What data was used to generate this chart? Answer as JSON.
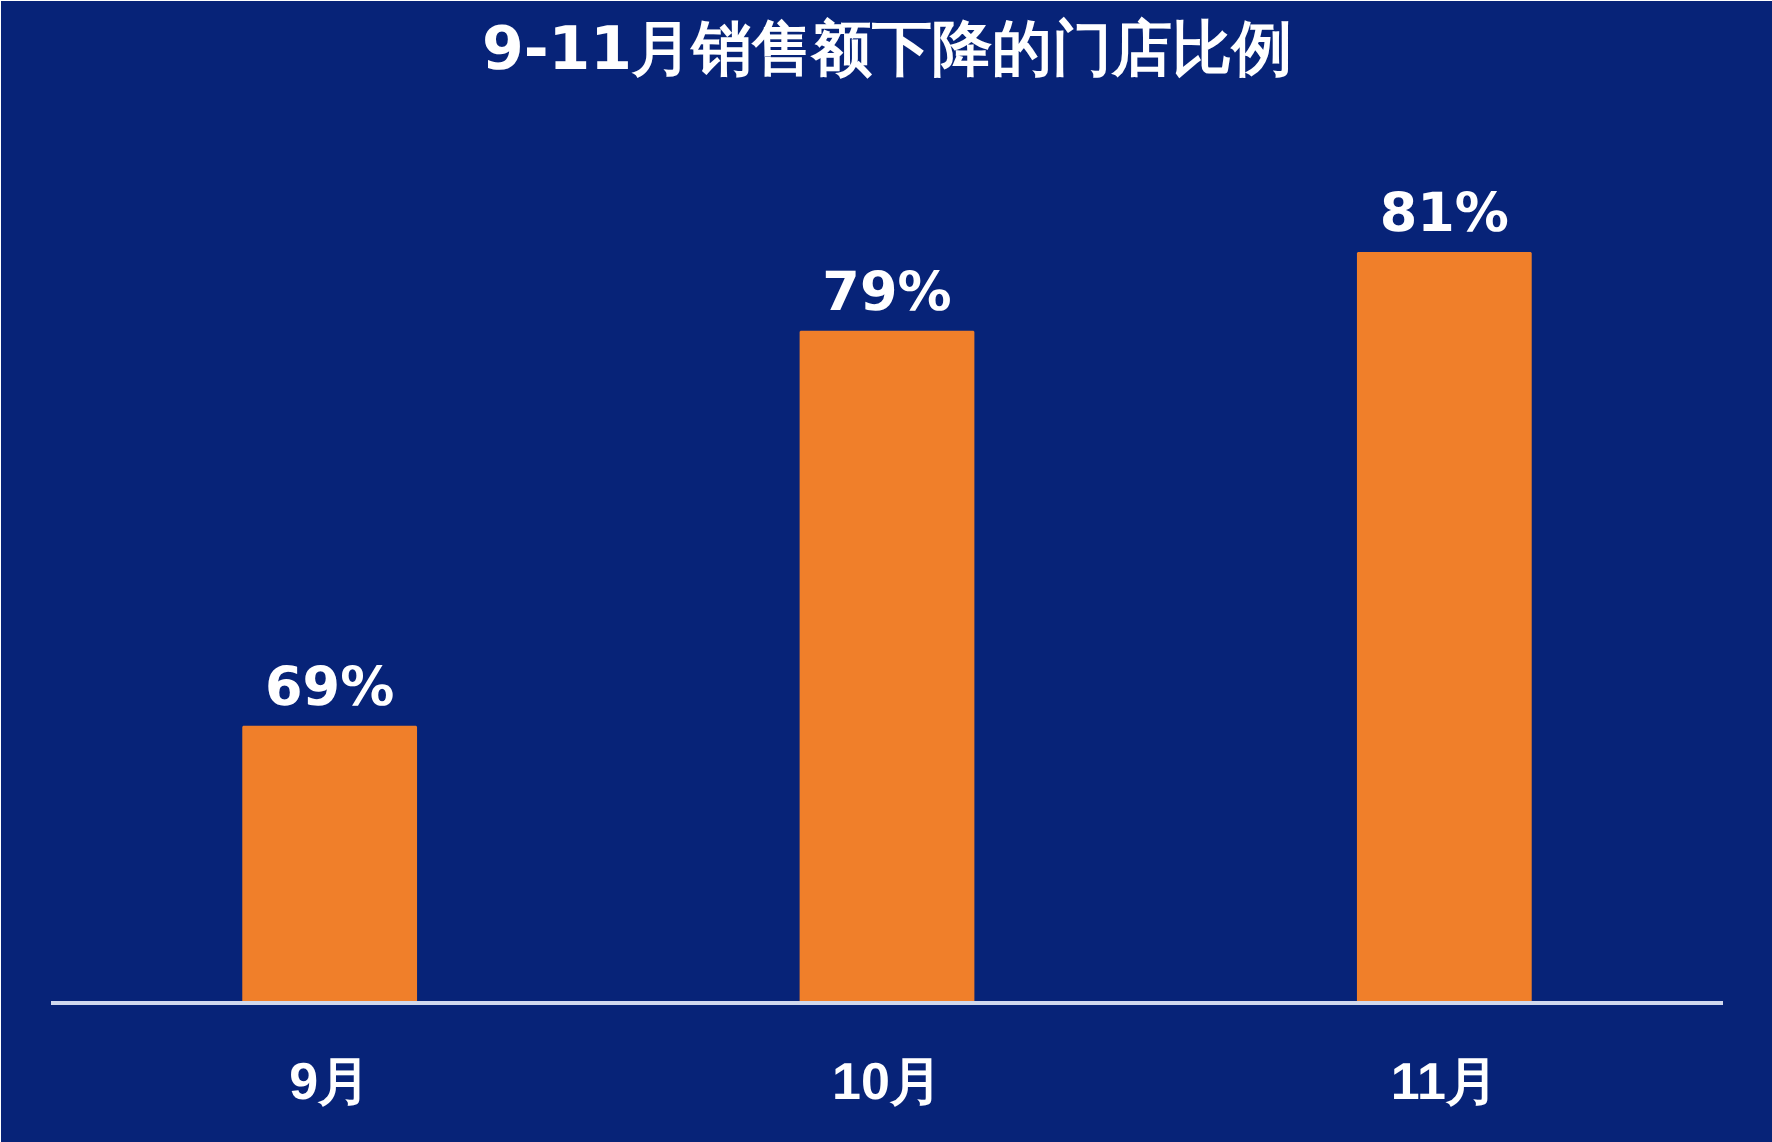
{
  "chart_data": {
    "type": "bar",
    "title": "9-11月销售额下降的门店比例",
    "categories": [
      "9月",
      "10月",
      "11月"
    ],
    "values": [
      69,
      79,
      81
    ],
    "value_labels": [
      "69%",
      "79%",
      "81%"
    ],
    "color": "#f07f2a",
    "ylim": [
      62,
      85
    ],
    "tick_labels": "x",
    "grid": false
  }
}
